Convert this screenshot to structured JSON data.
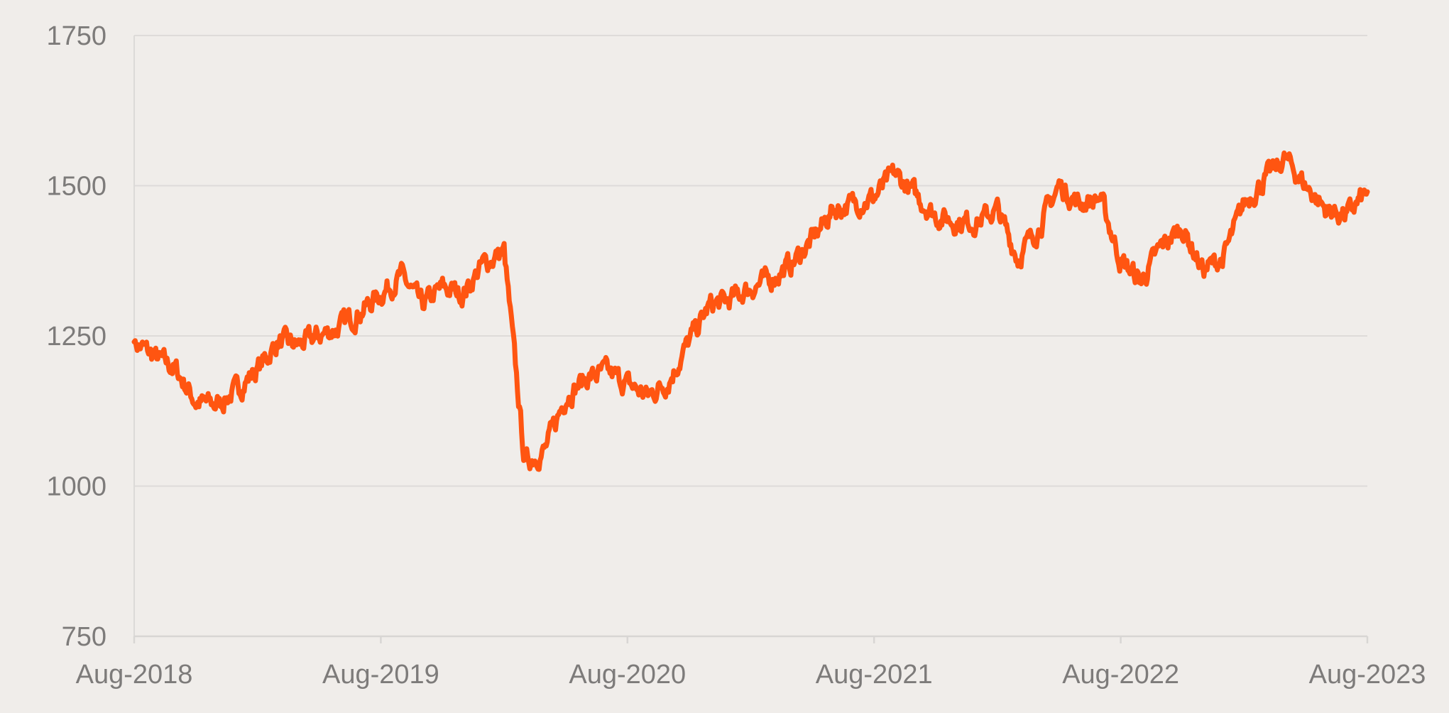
{
  "chart_data": {
    "type": "line",
    "title": "",
    "xlabel": "",
    "ylabel": "",
    "x_tick_labels": [
      "Aug-2018",
      "Aug-2019",
      "Aug-2020",
      "Aug-2021",
      "Aug-2022",
      "Aug-2023"
    ],
    "x_range": [
      "Aug-2018",
      "Aug-2023"
    ],
    "ylim": [
      750,
      1750
    ],
    "y_tick_labels": [
      "750",
      "1000",
      "1250",
      "1500",
      "1750"
    ],
    "y_ticks": [
      750,
      1000,
      1250,
      1500,
      1750
    ],
    "grid": "horizontal",
    "legend": "none",
    "line_color": "#ff5511",
    "series": [
      {
        "x": [
          "2018-08",
          "2018-09",
          "2018-10",
          "2018-11",
          "2018-12",
          "2019-01",
          "2019-02",
          "2019-03",
          "2019-04",
          "2019-05",
          "2019-06",
          "2019-07",
          "2019-08",
          "2019-09",
          "2019-10",
          "2019-11",
          "2019-12",
          "2020-01",
          "2020-02",
          "2020-03",
          "2020-04",
          "2020-05",
          "2020-06",
          "2020-07",
          "2020-08",
          "2020-09",
          "2020-10",
          "2020-11",
          "2020-12",
          "2021-01",
          "2021-02",
          "2021-03",
          "2021-04",
          "2021-05",
          "2021-06",
          "2021-07",
          "2021-08",
          "2021-09",
          "2021-10",
          "2021-11",
          "2021-12",
          "2022-01",
          "2022-02",
          "2022-03",
          "2022-04",
          "2022-05",
          "2022-06",
          "2022-07",
          "2022-08",
          "2022-09",
          "2022-10",
          "2022-11",
          "2022-12",
          "2023-01",
          "2023-02",
          "2023-03",
          "2023-04",
          "2023-05",
          "2023-06",
          "2023-07",
          "2023-08"
        ],
        "values": [
          1240,
          1215,
          1195,
          1140,
          1135,
          1160,
          1195,
          1240,
          1235,
          1250,
          1265,
          1290,
          1320,
          1350,
          1300,
          1330,
          1320,
          1370,
          1390,
          1040,
          1060,
          1150,
          1180,
          1190,
          1170,
          1150,
          1175,
          1240,
          1300,
          1310,
          1330,
          1345,
          1370,
          1410,
          1460,
          1470,
          1480,
          1520,
          1485,
          1450,
          1440,
          1440,
          1460,
          1380,
          1430,
          1500,
          1470,
          1480,
          1375,
          1340,
          1400,
          1430,
          1360,
          1380,
          1470,
          1510,
          1545,
          1500,
          1460,
          1450,
          1490
        ]
      }
    ]
  }
}
